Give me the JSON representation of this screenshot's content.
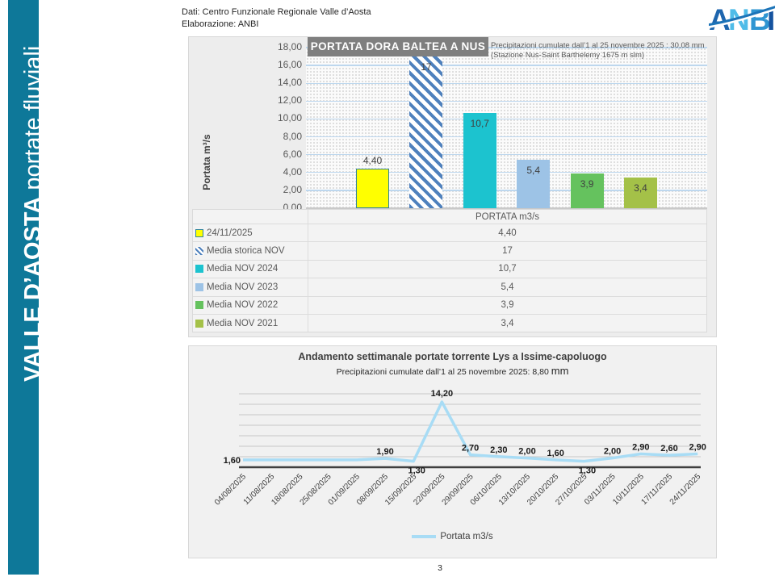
{
  "sidebar": {
    "title_bold": "VALLE D’AOSTA",
    "title_regular": "portate fluviali"
  },
  "credits": {
    "line1": "Dati: Centro Funzionale Regionale Valle d’Aosta",
    "line2": "Elaborazione: ANBI"
  },
  "logo": {
    "text": "ANBI"
  },
  "page_number": "3",
  "colors": {
    "sidebar": "#0E7899",
    "title_box": "#7F7F7F",
    "gridline_blue": "#BDD7EE",
    "line_chart_line": "#A8DCF5"
  },
  "chart_data": [
    {
      "type": "bar",
      "title": "PORTATA DORA BALTEA A NUS",
      "note_line1": "Precipitazioni cumulate dall’1 al 25 novembre 2025 : 30,08 mm",
      "note_line2": "(Stazione Nus-Saint Barthelemy 1675 m slm)",
      "ylabel": "Portata m³/s",
      "ylim": [
        0,
        18
      ],
      "ytick_step": 2,
      "yticks": [
        "18,00",
        "16,00",
        "14,00",
        "12,00",
        "10,00",
        "8,00",
        "6,00",
        "4,00",
        "2,00",
        "0,00"
      ],
      "column_header": "PORTATA m3/s",
      "grid": true,
      "legend_position": "table-below",
      "series": [
        {
          "label": "24/11/2025",
          "value": 4.4,
          "display": "4,40",
          "color": "#FFFF00",
          "border": "#31859C",
          "pattern": "solid",
          "label_inside": false
        },
        {
          "label": "Media storica NOV",
          "value": 17,
          "display": "17",
          "color": "#4F81BD",
          "border": "",
          "pattern": "hatch",
          "label_inside": true
        },
        {
          "label": "Media NOV 2024",
          "value": 10.7,
          "display": "10,7",
          "color": "#1CC3CF",
          "border": "",
          "pattern": "solid",
          "label_inside": true
        },
        {
          "label": "Media NOV 2023",
          "value": 5.4,
          "display": "5,4",
          "color": "#9DC3E6",
          "border": "",
          "pattern": "solid",
          "label_inside": true
        },
        {
          "label": "Media NOV 2022",
          "value": 3.9,
          "display": "3,9",
          "color": "#65C25E",
          "border": "",
          "pattern": "solid",
          "label_inside": true
        },
        {
          "label": "Media NOV 2021",
          "value": 3.4,
          "display": "3,4",
          "color": "#A4C148",
          "border": "",
          "pattern": "solid",
          "label_inside": true
        }
      ]
    },
    {
      "type": "line",
      "title": "Andamento settimanale portate torrente Lys a Issime-capoluogo",
      "subtitle": "Precipitazioni cumulate dall’1 al 25 novembre 2025: 8,80",
      "subtitle_unit": "mm",
      "legend_label": "Portata m3/s",
      "legend_position": "bottom",
      "line_color": "#A8DCF5",
      "ylim": [
        0,
        16
      ],
      "grid": true,
      "x": [
        "04/08/2025",
        "11/08/2025",
        "18/08/2025",
        "25/08/2025",
        "01/09/2025",
        "08/09/2025",
        "15/09/2025",
        "22/09/2025",
        "29/09/2025",
        "06/10/2025",
        "13/10/2025",
        "20/10/2025",
        "27/10/2025",
        "03/11/2025",
        "10/11/2025",
        "17/11/2025",
        "24/11/2025"
      ],
      "values": [
        1.6,
        1.6,
        1.6,
        1.6,
        1.6,
        1.9,
        1.3,
        14.2,
        2.7,
        2.3,
        2.0,
        1.6,
        1.3,
        2.0,
        2.9,
        2.6,
        2.9
      ],
      "labels": [
        "1,60",
        "",
        "",
        "",
        "",
        "1,90",
        "1,30",
        "14,20",
        "2,70",
        "2,30",
        "2,00",
        "1,60",
        "1,30",
        "2,00",
        "2,90",
        "2,60",
        "2,90"
      ],
      "label_pos": [
        "left",
        "",
        "",
        "",
        "",
        "above",
        "below",
        "peak",
        "above",
        "above",
        "above",
        "above",
        "below",
        "above",
        "above",
        "above",
        "above"
      ]
    }
  ]
}
